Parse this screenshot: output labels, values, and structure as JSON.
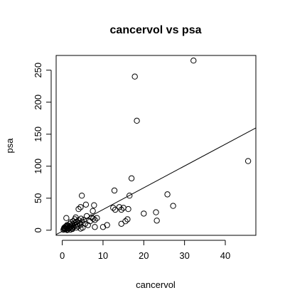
{
  "chart_data": {
    "type": "scatter",
    "title": "cancervol vs psa",
    "xlabel": "cancervol",
    "ylabel": "psa",
    "xlim": [
      -1.5,
      47.5
    ],
    "ylim": [
      -8,
      273
    ],
    "x_ticks": [
      0,
      10,
      20,
      30,
      40
    ],
    "y_ticks": [
      0,
      50,
      100,
      150,
      200,
      250
    ],
    "x_tick_labels": [
      "0",
      "10",
      "20",
      "30",
      "40"
    ],
    "y_tick_labels": [
      "0",
      "50",
      "100",
      "150",
      "200",
      "250"
    ],
    "grid": false,
    "legend": "none",
    "regression_line": {
      "intercept": -1.7,
      "slope": 3.4
    },
    "points": [
      [
        0.3,
        0.7
      ],
      [
        0.4,
        2.5
      ],
      [
        0.5,
        4.0
      ],
      [
        0.6,
        1.5
      ],
      [
        0.7,
        3.0
      ],
      [
        0.8,
        5.5
      ],
      [
        0.9,
        2.0
      ],
      [
        1.0,
        6.5
      ],
      [
        1.1,
        4.5
      ],
      [
        1.2,
        8.0
      ],
      [
        1.3,
        1.0
      ],
      [
        1.4,
        3.5
      ],
      [
        1.5,
        7.0
      ],
      [
        1.6,
        2.8
      ],
      [
        1.8,
        5.0
      ],
      [
        1.9,
        10.0
      ],
      [
        2.0,
        4.2
      ],
      [
        2.1,
        12.5
      ],
      [
        2.2,
        6.0
      ],
      [
        2.4,
        3.0
      ],
      [
        2.5,
        9.0
      ],
      [
        2.7,
        14.0
      ],
      [
        2.8,
        5.5
      ],
      [
        3.0,
        11.0
      ],
      [
        3.1,
        17.0
      ],
      [
        3.2,
        7.5
      ],
      [
        3.3,
        20.0
      ],
      [
        3.5,
        13.0
      ],
      [
        3.6,
        9.5
      ],
      [
        3.8,
        6.0
      ],
      [
        4.0,
        15.5
      ],
      [
        4.2,
        11.0
      ],
      [
        4.4,
        8.0
      ],
      [
        4.6,
        18.0
      ],
      [
        4.8,
        13.0
      ],
      [
        5.0,
        4.0
      ],
      [
        5.3,
        16.0
      ],
      [
        5.6,
        10.0
      ],
      [
        6.0,
        22.0
      ],
      [
        6.3,
        8.0
      ],
      [
        6.8,
        14.0
      ],
      [
        7.2,
        20.0
      ],
      [
        7.6,
        18.0
      ],
      [
        8.0,
        16.0
      ],
      [
        8.5,
        19.0
      ],
      [
        1.2,
        0.3
      ],
      [
        2.0,
        0.9
      ],
      [
        2.5,
        2.0
      ],
      [
        3.5,
        4.0
      ],
      [
        4.5,
        2.5
      ],
      [
        4.0,
        33.0
      ],
      [
        4.5,
        36.0
      ],
      [
        4.8,
        54.0
      ],
      [
        5.8,
        40.0
      ],
      [
        7.5,
        30.0
      ],
      [
        7.8,
        39.0
      ],
      [
        1.0,
        19.0
      ],
      [
        8.0,
        5.0
      ],
      [
        10.0,
        5.0
      ],
      [
        11.0,
        8.0
      ],
      [
        12.5,
        35.0
      ],
      [
        13.0,
        32.0
      ],
      [
        14.0,
        36.0
      ],
      [
        14.5,
        32.0
      ],
      [
        15.0,
        35.0
      ],
      [
        12.8,
        62.0
      ],
      [
        14.5,
        10.0
      ],
      [
        15.5,
        14.0
      ],
      [
        16.0,
        17.0
      ],
      [
        16.2,
        33.0
      ],
      [
        16.5,
        54.0
      ],
      [
        17.0,
        81.0
      ],
      [
        17.8,
        240.0
      ],
      [
        18.3,
        171.0
      ],
      [
        20.0,
        26.0
      ],
      [
        23.0,
        28.0
      ],
      [
        23.2,
        15.0
      ],
      [
        25.8,
        56.0
      ],
      [
        27.2,
        38.0
      ],
      [
        32.2,
        265.0
      ],
      [
        45.6,
        108.0
      ]
    ]
  }
}
